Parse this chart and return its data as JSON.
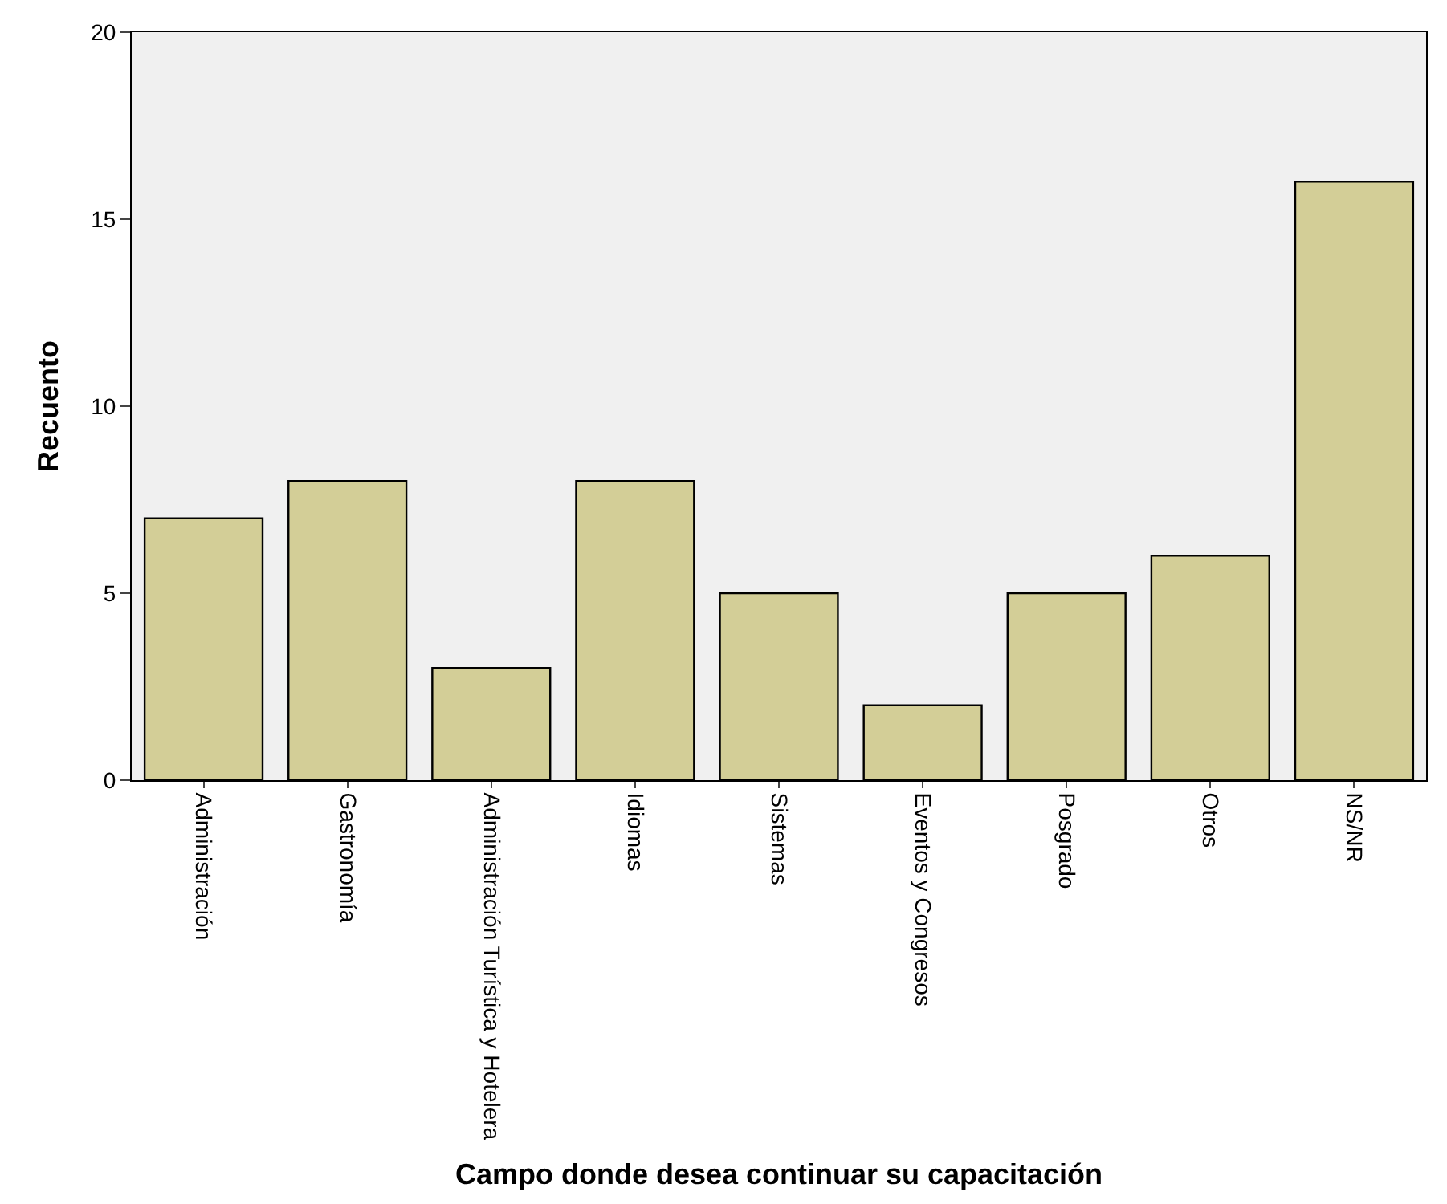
{
  "chart_data": {
    "type": "bar",
    "xlabel": "Campo donde desea continuar su capacitación",
    "ylabel": "Recuento",
    "categories": [
      "Administración",
      "Gastronomía",
      "Administración Turística y Hotelera",
      "Idiomas",
      "Sistemas",
      "Eventos y Congresos",
      "Posgrado",
      "Otros",
      "NS/NR"
    ],
    "values": [
      7,
      8,
      3,
      8,
      5,
      2,
      5,
      6,
      16
    ],
    "color": "#d3ce97",
    "ylim": [
      0,
      20
    ],
    "yticks": [
      0,
      5,
      10,
      15,
      20
    ],
    "grid": false
  }
}
